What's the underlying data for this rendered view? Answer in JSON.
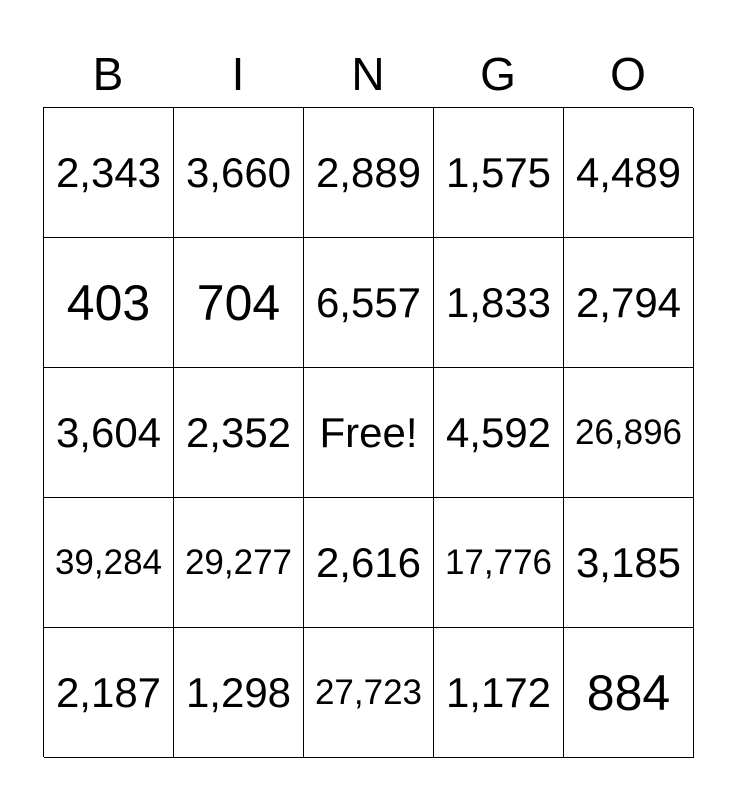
{
  "header": [
    "B",
    "I",
    "N",
    "G",
    "O"
  ],
  "rows": [
    [
      "2,343",
      "3,660",
      "2,889",
      "1,575",
      "4,489"
    ],
    [
      "403",
      "704",
      "6,557",
      "1,833",
      "2,794"
    ],
    [
      "3,604",
      "2,352",
      "Free!",
      "4,592",
      "26,896"
    ],
    [
      "39,284",
      "29,277",
      "2,616",
      "17,776",
      "3,185"
    ],
    [
      "2,187",
      "1,298",
      "27,723",
      "1,172",
      "884"
    ]
  ]
}
